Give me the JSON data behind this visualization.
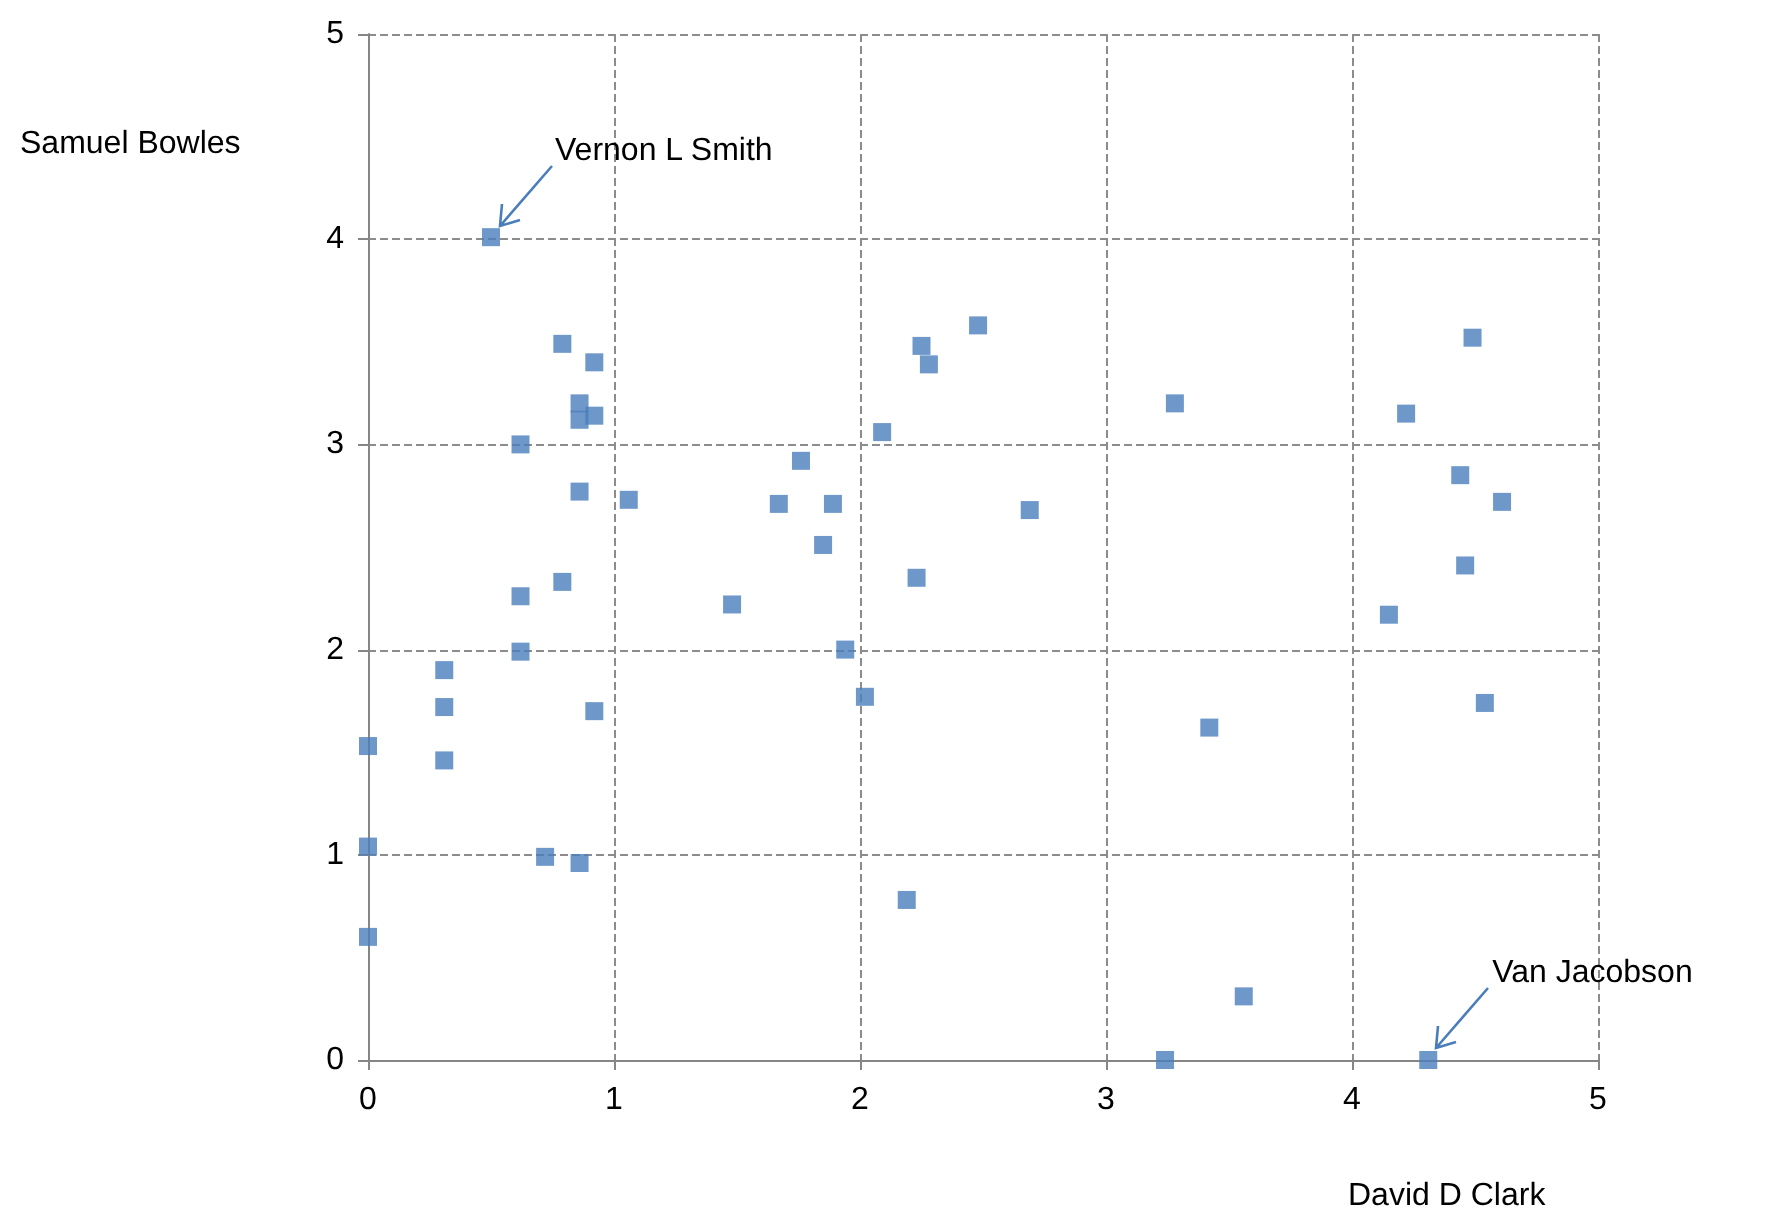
{
  "chart_data": {
    "type": "scatter",
    "xlabel": "David D Clark",
    "ylabel": "Samuel Bowles",
    "marker": "square",
    "grid": true,
    "xlim": [
      0,
      5
    ],
    "ylim": [
      0,
      5
    ],
    "xticks": [
      0,
      1,
      2,
      3,
      4,
      5
    ],
    "yticks": [
      0,
      1,
      2,
      3,
      4,
      5
    ],
    "annotations": [
      {
        "text": "Vernon L Smith",
        "x": 0.5,
        "y": 4.01
      },
      {
        "text": "Van Jacobson",
        "x": 4.31,
        "y": 0
      }
    ],
    "series": [
      {
        "color": "#4a7ebb",
        "x": [
          0.5,
          0.79,
          0.92,
          0.86,
          0.86,
          0.92,
          0.62,
          0.86,
          1.06,
          0.62,
          0.79,
          0.62,
          0.31,
          0.31,
          0.31,
          0.92,
          0,
          0,
          0,
          0.72,
          0.86,
          1.48,
          1.76,
          1.67,
          1.89,
          1.85,
          1.94,
          2.02,
          2.09,
          2.25,
          2.28,
          2.48,
          2.23,
          2.69,
          2.19,
          3.28,
          3.42,
          3.56,
          3.24,
          4.31,
          4.49,
          4.22,
          4.44,
          4.61,
          4.46,
          4.15,
          4.54
        ],
        "values": [
          4.01,
          3.49,
          3.4,
          3.2,
          3.12,
          3.14,
          3.0,
          2.77,
          2.73,
          2.26,
          2.33,
          1.99,
          1.9,
          1.72,
          1.46,
          1.7,
          1.53,
          1.04,
          0.6,
          0.99,
          0.96,
          2.22,
          2.92,
          2.71,
          2.71,
          2.51,
          2.0,
          1.77,
          3.06,
          3.48,
          3.39,
          3.58,
          2.35,
          2.68,
          0.78,
          3.2,
          1.62,
          0.31,
          0,
          0,
          3.52,
          3.15,
          2.85,
          2.72,
          2.41,
          2.17,
          1.74
        ]
      }
    ]
  }
}
